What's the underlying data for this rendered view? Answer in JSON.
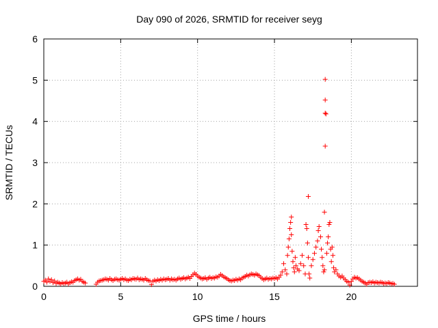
{
  "chart_data": {
    "type": "scatter",
    "title": "Day 090 of 2026, SRMTID for receiver seyg",
    "xlabel": "GPS time / hours",
    "ylabel": "SRMTID / TECUs",
    "xlim": [
      0,
      24.3
    ],
    "ylim": [
      0,
      6
    ],
    "xticks": [
      0,
      5,
      10,
      15,
      20
    ],
    "yticks": [
      0,
      1,
      2,
      3,
      4,
      5,
      6
    ],
    "xtick_labels": [
      "0",
      "5",
      "10",
      "15",
      "20"
    ],
    "ytick_labels": [
      "0",
      "1",
      "2",
      "3",
      "4",
      "5",
      "6"
    ],
    "grid": true,
    "marker": "+",
    "color": "#ff0000",
    "series": [
      {
        "name": "seyg",
        "points": [
          [
            0.0,
            0.12
          ],
          [
            0.1,
            0.15
          ],
          [
            0.2,
            0.1
          ],
          [
            0.3,
            0.18
          ],
          [
            0.4,
            0.12
          ],
          [
            0.5,
            0.16
          ],
          [
            0.6,
            0.09
          ],
          [
            0.7,
            0.13
          ],
          [
            0.8,
            0.07
          ],
          [
            0.9,
            0.1
          ],
          [
            1.0,
            0.08
          ],
          [
            1.1,
            0.06
          ],
          [
            1.2,
            0.09
          ],
          [
            1.3,
            0.07
          ],
          [
            1.4,
            0.08
          ],
          [
            1.5,
            0.1
          ],
          [
            1.6,
            0.06
          ],
          [
            1.7,
            0.09
          ],
          [
            1.8,
            0.11
          ],
          [
            1.9,
            0.1
          ],
          [
            2.0,
            0.14
          ],
          [
            2.1,
            0.16
          ],
          [
            2.2,
            0.18
          ],
          [
            2.3,
            0.15
          ],
          [
            2.4,
            0.17
          ],
          [
            2.5,
            0.12
          ],
          [
            2.6,
            0.1
          ],
          [
            2.7,
            0.08
          ],
          [
            3.4,
            0.05
          ],
          [
            3.5,
            0.1
          ],
          [
            3.6,
            0.13
          ],
          [
            3.7,
            0.14
          ],
          [
            3.8,
            0.15
          ],
          [
            3.9,
            0.16
          ],
          [
            4.0,
            0.18
          ],
          [
            4.1,
            0.17
          ],
          [
            4.2,
            0.15
          ],
          [
            4.3,
            0.19
          ],
          [
            4.4,
            0.16
          ],
          [
            4.5,
            0.14
          ],
          [
            4.6,
            0.17
          ],
          [
            4.7,
            0.18
          ],
          [
            4.8,
            0.16
          ],
          [
            4.9,
            0.15
          ],
          [
            5.0,
            0.17
          ],
          [
            5.1,
            0.19
          ],
          [
            5.2,
            0.16
          ],
          [
            5.3,
            0.18
          ],
          [
            5.4,
            0.15
          ],
          [
            5.5,
            0.14
          ],
          [
            5.6,
            0.17
          ],
          [
            5.7,
            0.16
          ],
          [
            5.8,
            0.19
          ],
          [
            5.9,
            0.18
          ],
          [
            6.0,
            0.17
          ],
          [
            6.1,
            0.2
          ],
          [
            6.2,
            0.16
          ],
          [
            6.3,
            0.18
          ],
          [
            6.4,
            0.17
          ],
          [
            6.5,
            0.15
          ],
          [
            6.6,
            0.19
          ],
          [
            6.7,
            0.16
          ],
          [
            6.8,
            0.14
          ],
          [
            6.9,
            0.13
          ],
          [
            7.0,
            0.04
          ],
          [
            7.1,
            0.12
          ],
          [
            7.2,
            0.15
          ],
          [
            7.3,
            0.13
          ],
          [
            7.4,
            0.16
          ],
          [
            7.5,
            0.14
          ],
          [
            7.6,
            0.17
          ],
          [
            7.7,
            0.15
          ],
          [
            7.8,
            0.18
          ],
          [
            7.9,
            0.16
          ],
          [
            8.0,
            0.17
          ],
          [
            8.1,
            0.19
          ],
          [
            8.2,
            0.15
          ],
          [
            8.3,
            0.18
          ],
          [
            8.4,
            0.16
          ],
          [
            8.5,
            0.17
          ],
          [
            8.6,
            0.15
          ],
          [
            8.7,
            0.18
          ],
          [
            8.8,
            0.2
          ],
          [
            8.9,
            0.17
          ],
          [
            9.0,
            0.19
          ],
          [
            9.1,
            0.21
          ],
          [
            9.2,
            0.18
          ],
          [
            9.3,
            0.2
          ],
          [
            9.4,
            0.22
          ],
          [
            9.5,
            0.19
          ],
          [
            9.6,
            0.24
          ],
          [
            9.7,
            0.28
          ],
          [
            9.8,
            0.32
          ],
          [
            9.9,
            0.29
          ],
          [
            10.0,
            0.25
          ],
          [
            10.1,
            0.22
          ],
          [
            10.2,
            0.2
          ],
          [
            10.3,
            0.18
          ],
          [
            10.4,
            0.19
          ],
          [
            10.5,
            0.21
          ],
          [
            10.6,
            0.17
          ],
          [
            10.7,
            0.2
          ],
          [
            10.8,
            0.22
          ],
          [
            10.9,
            0.19
          ],
          [
            11.0,
            0.21
          ],
          [
            11.1,
            0.2
          ],
          [
            11.2,
            0.23
          ],
          [
            11.3,
            0.22
          ],
          [
            11.4,
            0.25
          ],
          [
            11.5,
            0.29
          ],
          [
            11.6,
            0.26
          ],
          [
            11.7,
            0.23
          ],
          [
            11.8,
            0.21
          ],
          [
            11.9,
            0.19
          ],
          [
            12.0,
            0.16
          ],
          [
            12.1,
            0.14
          ],
          [
            12.2,
            0.13
          ],
          [
            12.3,
            0.15
          ],
          [
            12.4,
            0.14
          ],
          [
            12.5,
            0.17
          ],
          [
            12.6,
            0.15
          ],
          [
            12.7,
            0.18
          ],
          [
            12.8,
            0.16
          ],
          [
            12.9,
            0.2
          ],
          [
            13.0,
            0.22
          ],
          [
            13.1,
            0.24
          ],
          [
            13.2,
            0.27
          ],
          [
            13.3,
            0.25
          ],
          [
            13.4,
            0.28
          ],
          [
            13.5,
            0.3
          ],
          [
            13.6,
            0.29
          ],
          [
            13.7,
            0.27
          ],
          [
            13.8,
            0.3
          ],
          [
            13.9,
            0.28
          ],
          [
            14.0,
            0.26
          ],
          [
            14.1,
            0.22
          ],
          [
            14.2,
            0.19
          ],
          [
            14.3,
            0.16
          ],
          [
            14.4,
            0.18
          ],
          [
            14.5,
            0.2
          ],
          [
            14.6,
            0.17
          ],
          [
            14.7,
            0.19
          ],
          [
            14.8,
            0.18
          ],
          [
            14.9,
            0.2
          ],
          [
            15.0,
            0.19
          ],
          [
            15.1,
            0.21
          ],
          [
            15.2,
            0.18
          ],
          [
            15.3,
            0.22
          ],
          [
            15.4,
            0.27
          ],
          [
            15.5,
            0.35
          ],
          [
            15.6,
            0.55
          ],
          [
            15.7,
            0.4
          ],
          [
            15.8,
            0.3
          ],
          [
            15.85,
            0.75
          ],
          [
            15.9,
            0.95
          ],
          [
            15.95,
            1.15
          ],
          [
            16.0,
            1.4
          ],
          [
            16.05,
            1.55
          ],
          [
            16.1,
            1.68
          ],
          [
            16.1,
            1.25
          ],
          [
            16.15,
            0.85
          ],
          [
            16.2,
            0.6
          ],
          [
            16.25,
            0.45
          ],
          [
            16.3,
            0.35
          ],
          [
            16.35,
            0.7
          ],
          [
            16.4,
            0.5
          ],
          [
            16.5,
            0.42
          ],
          [
            16.6,
            0.38
          ],
          [
            16.7,
            0.55
          ],
          [
            16.8,
            0.75
          ],
          [
            16.9,
            0.5
          ],
          [
            17.0,
            0.3
          ],
          [
            17.05,
            1.5
          ],
          [
            17.1,
            1.4
          ],
          [
            17.15,
            1.05
          ],
          [
            17.2,
            0.7
          ],
          [
            17.25,
            0.3
          ],
          [
            17.3,
            0.2
          ],
          [
            17.2,
            2.18
          ],
          [
            17.4,
            0.5
          ],
          [
            17.5,
            0.65
          ],
          [
            17.6,
            0.8
          ],
          [
            17.7,
            0.95
          ],
          [
            17.8,
            1.1
          ],
          [
            17.85,
            1.35
          ],
          [
            17.9,
            1.45
          ],
          [
            18.0,
            1.2
          ],
          [
            18.05,
            0.9
          ],
          [
            18.1,
            0.7
          ],
          [
            18.15,
            0.5
          ],
          [
            18.2,
            0.35
          ],
          [
            18.25,
            0.4
          ],
          [
            18.3,
            5.02
          ],
          [
            18.3,
            4.52
          ],
          [
            18.3,
            4.2
          ],
          [
            18.35,
            4.18
          ],
          [
            18.3,
            3.4
          ],
          [
            18.25,
            1.8
          ],
          [
            18.4,
            0.8
          ],
          [
            18.45,
            1.05
          ],
          [
            18.5,
            1.2
          ],
          [
            18.55,
            1.5
          ],
          [
            18.6,
            1.55
          ],
          [
            18.65,
            0.9
          ],
          [
            18.7,
            0.6
          ],
          [
            18.75,
            0.95
          ],
          [
            18.8,
            0.75
          ],
          [
            18.85,
            0.45
          ],
          [
            18.9,
            0.35
          ],
          [
            19.0,
            0.4
          ],
          [
            19.1,
            0.3
          ],
          [
            19.2,
            0.25
          ],
          [
            19.3,
            0.22
          ],
          [
            19.4,
            0.25
          ],
          [
            19.5,
            0.2
          ],
          [
            19.6,
            0.16
          ],
          [
            19.7,
            0.12
          ],
          [
            19.8,
            0.1
          ],
          [
            19.9,
            0.03
          ],
          [
            20.0,
            0.12
          ],
          [
            20.1,
            0.18
          ],
          [
            20.2,
            0.22
          ],
          [
            20.3,
            0.2
          ],
          [
            20.4,
            0.21
          ],
          [
            20.5,
            0.18
          ],
          [
            20.6,
            0.15
          ],
          [
            20.7,
            0.12
          ],
          [
            20.8,
            0.1
          ],
          [
            20.9,
            0.08
          ],
          [
            21.0,
            0.05
          ],
          [
            21.1,
            0.09
          ],
          [
            21.2,
            0.1
          ],
          [
            21.3,
            0.09
          ],
          [
            21.4,
            0.11
          ],
          [
            21.5,
            0.08
          ],
          [
            21.6,
            0.1
          ],
          [
            21.7,
            0.09
          ],
          [
            21.8,
            0.08
          ],
          [
            21.9,
            0.1
          ],
          [
            22.0,
            0.09
          ],
          [
            22.1,
            0.07
          ],
          [
            22.2,
            0.08
          ],
          [
            22.3,
            0.07
          ],
          [
            22.4,
            0.09
          ],
          [
            22.5,
            0.08
          ],
          [
            22.6,
            0.06
          ],
          [
            22.7,
            0.07
          ],
          [
            22.8,
            0.05
          ]
        ]
      }
    ]
  }
}
